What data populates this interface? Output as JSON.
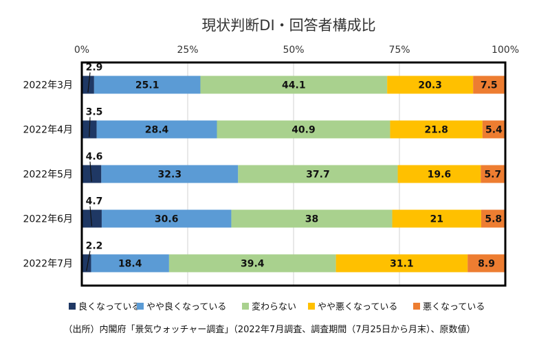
{
  "chart_data": {
    "type": "bar",
    "orientation": "horizontal",
    "stacked": true,
    "title": "現状判断DI・回答者構成比",
    "xlim": [
      0,
      100
    ],
    "x_ticks": [
      "0%",
      "25%",
      "50%",
      "75%",
      "100%"
    ],
    "grid": true,
    "legend_position": "bottom",
    "categories": [
      "2022年3月",
      "2022年4月",
      "2022年5月",
      "2022年6月",
      "2022年7月"
    ],
    "series": [
      {
        "name": "良くなっている",
        "color": "#1f3864",
        "values": [
          2.9,
          3.5,
          4.6,
          4.7,
          2.2
        ]
      },
      {
        "name": "やや良くなっている",
        "color": "#5b9bd5",
        "values": [
          25.1,
          28.4,
          32.3,
          30.6,
          18.4
        ]
      },
      {
        "name": "変わらない",
        "color": "#a9d18e",
        "values": [
          44.1,
          40.9,
          37.7,
          38.0,
          39.4
        ]
      },
      {
        "name": "やや悪くなっている",
        "color": "#ffc000",
        "values": [
          20.3,
          21.8,
          19.6,
          21.0,
          31.1
        ]
      },
      {
        "name": "悪くなっている",
        "color": "#ed7d31",
        "values": [
          7.5,
          5.4,
          5.7,
          5.8,
          8.9
        ]
      }
    ],
    "source": "（出所）内閣府「景気ウォッチャー調査」（2022年7月調査、調査期間（7月25日から月末）、原数値）"
  }
}
